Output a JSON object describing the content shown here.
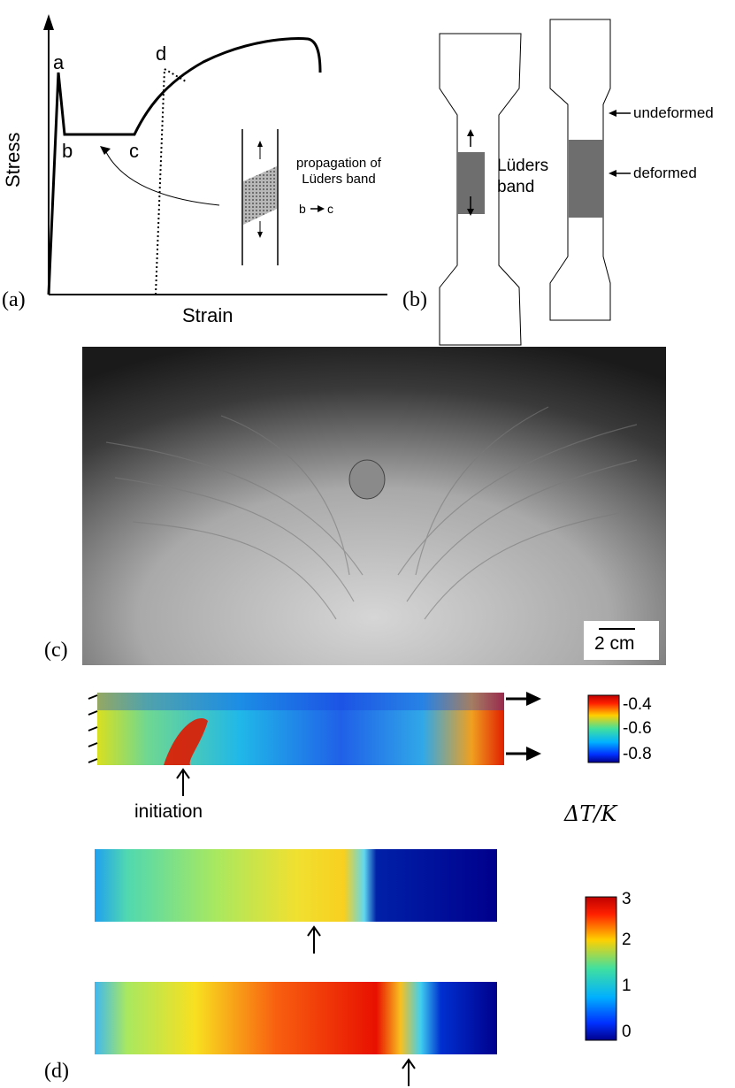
{
  "panel_a": {
    "label": "(a)",
    "y_axis": "Stress",
    "x_axis": "Strain",
    "points": {
      "a": "a",
      "b": "b",
      "c": "c",
      "d": "d"
    },
    "inset_line1": "propagation of",
    "inset_line2": "Lüders band",
    "inset_line3_from": "b",
    "inset_line3_to": "c"
  },
  "panel_b": {
    "label": "(b)",
    "band_line1": "Lüders",
    "band_line2": "band",
    "undeformed": "undeformed",
    "deformed": "deformed"
  },
  "panel_c": {
    "label": "(c)",
    "scale_bar": "2 cm"
  },
  "panel_d": {
    "label": "(d)",
    "initiation": "initiation",
    "unit": "ΔT/K",
    "colorbar_top": {
      "ticks": [
        "-0.4",
        "-0.6",
        "-0.8"
      ]
    },
    "colorbar_bottom": {
      "ticks": [
        "3",
        "2",
        "1",
        "0"
      ]
    },
    "colors": {
      "jet_red": "#d40000",
      "jet_blue": "#0000a8",
      "jet_green": "#40d080"
    }
  }
}
